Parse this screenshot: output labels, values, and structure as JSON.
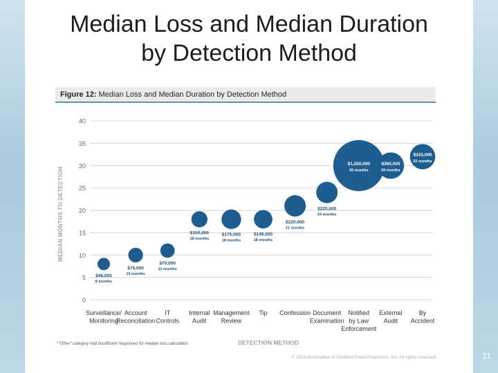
{
  "slide": {
    "title_line1": "Median Loss and Median Duration",
    "title_line2": "by Detection Method",
    "page_number": "11"
  },
  "figure": {
    "label": "Figure 12:",
    "title": "Median Loss and Median Duration by Detection Method",
    "footnote": "*\"Other\" category had insufficient responses for median loss calculation",
    "copyright": "© 2014 Association of Certified Fraud Examiners, Inc. All rights reserved."
  },
  "chart_data": {
    "type": "scatter",
    "title": "Median Loss and Median Duration by Detection Method",
    "xlabel": "DETECTION METHOD",
    "ylabel": "MEDIAN MONTHS TO DETECTION",
    "ylim": [
      0,
      40
    ],
    "yticks": [
      0,
      5,
      10,
      15,
      20,
      25,
      30,
      35,
      40
    ],
    "grid": true,
    "bubble_color": "#1f5d91",
    "grid_color": "#d4d4d4",
    "points": [
      {
        "category": [
          "Surveillance/",
          "Monitoring"
        ],
        "loss_label": "$48,000",
        "loss": 48000,
        "months": 8,
        "months_label": "8 months"
      },
      {
        "category": [
          "Account",
          "Reconciliation"
        ],
        "loss_label": "$75,000",
        "loss": 75000,
        "months": 10,
        "months_label": "10 months"
      },
      {
        "category": [
          "IT",
          "Controls"
        ],
        "loss_label": "$70,000",
        "loss": 70000,
        "months": 11,
        "months_label": "11 months"
      },
      {
        "category": [
          "Internal",
          "Audit"
        ],
        "loss_label": "$100,000",
        "loss": 100000,
        "months": 18,
        "months_label": "18 months"
      },
      {
        "category": [
          "Management",
          "Review"
        ],
        "loss_label": "$175,000",
        "loss": 175000,
        "months": 18,
        "months_label": "18 months"
      },
      {
        "category": [
          "Tip"
        ],
        "loss_label": "$149,000",
        "loss": 149000,
        "months": 18,
        "months_label": "18 months"
      },
      {
        "category": [
          "Confession"
        ],
        "loss_label": "$220,000",
        "loss": 220000,
        "months": 21,
        "months_label": "21 months"
      },
      {
        "category": [
          "Document",
          "Examination"
        ],
        "loss_label": "$220,000",
        "loss": 220000,
        "months": 24,
        "months_label": "24 months"
      },
      {
        "category": [
          "Notified",
          "by Law",
          "Enforcement"
        ],
        "loss_label": "$1,250,000",
        "loss": 1250000,
        "months": 30,
        "months_label": "30 months"
      },
      {
        "category": [
          "External",
          "Audit"
        ],
        "loss_label": "$360,000",
        "loss": 360000,
        "months": 30,
        "months_label": "30 months"
      },
      {
        "category": [
          "By",
          "Accident"
        ],
        "loss_label": "$325,000",
        "loss": 325000,
        "months": 32,
        "months_label": "32 months"
      }
    ]
  }
}
